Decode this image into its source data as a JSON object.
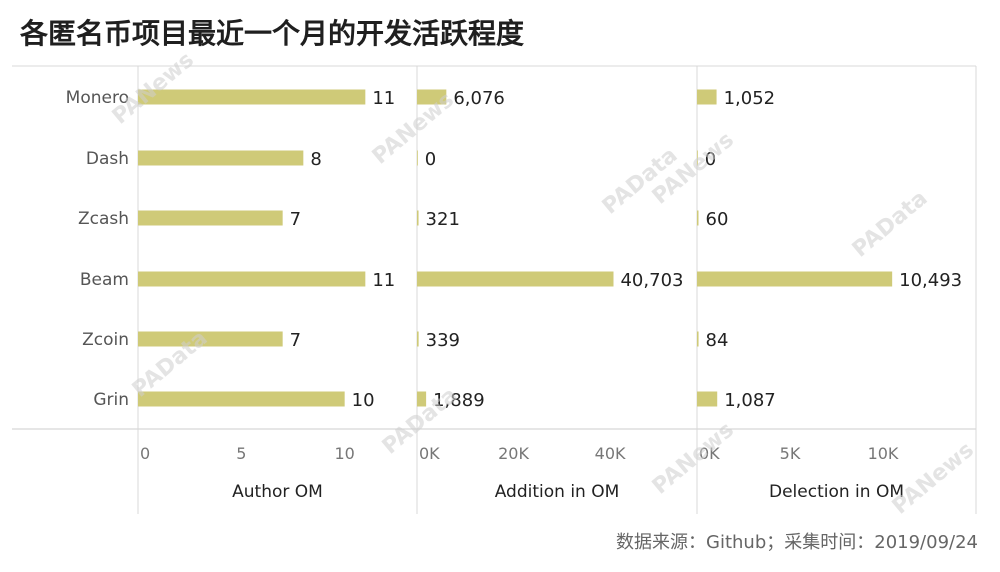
{
  "title": "各匿名币项目最近一个月的开发活跃程度",
  "source": "数据来源：Github；采集时间：2019/09/24",
  "watermarks": [
    "PANews",
    "PAData"
  ],
  "colors": {
    "bar": "#cfca78",
    "grid": "#d9d9d9",
    "axis": "#cccccc"
  },
  "chart_data": [
    {
      "type": "bar",
      "orientation": "horizontal",
      "xlabel": "Author OM",
      "categories": [
        "Monero",
        "Dash",
        "Zcash",
        "Beam",
        "Zcoin",
        "Grin"
      ],
      "values": [
        11,
        8,
        7,
        11,
        7,
        10
      ],
      "value_labels": [
        "11",
        "8",
        "7",
        "11",
        "7",
        "10"
      ],
      "xlim": [
        0,
        13.5
      ],
      "ticks": [
        0,
        5,
        10
      ],
      "tick_labels": [
        "0",
        "5",
        "10"
      ]
    },
    {
      "type": "bar",
      "orientation": "horizontal",
      "xlabel": "Addition in OM",
      "categories": [
        "Monero",
        "Dash",
        "Zcash",
        "Beam",
        "Zcoin",
        "Grin"
      ],
      "values": [
        6076,
        0,
        321,
        40703,
        339,
        1889
      ],
      "value_labels": [
        "6,076",
        "0",
        "321",
        "40,703",
        "339",
        "1,889"
      ],
      "xlim": [
        0,
        58000
      ],
      "ticks": [
        0,
        20000,
        40000
      ],
      "tick_labels": [
        "0K",
        "20K",
        "40K"
      ]
    },
    {
      "type": "bar",
      "orientation": "horizontal",
      "xlabel": "Delection in OM",
      "categories": [
        "Monero",
        "Dash",
        "Zcash",
        "Beam",
        "Zcoin",
        "Grin"
      ],
      "values": [
        1052,
        0,
        60,
        10493,
        84,
        1087
      ],
      "value_labels": [
        "1,052",
        "0",
        "60",
        "10,493",
        "84",
        "1,087"
      ],
      "xlim": [
        0,
        15000
      ],
      "ticks": [
        0,
        5000,
        10000
      ],
      "tick_labels": [
        "0K",
        "5K",
        "10K"
      ]
    }
  ]
}
